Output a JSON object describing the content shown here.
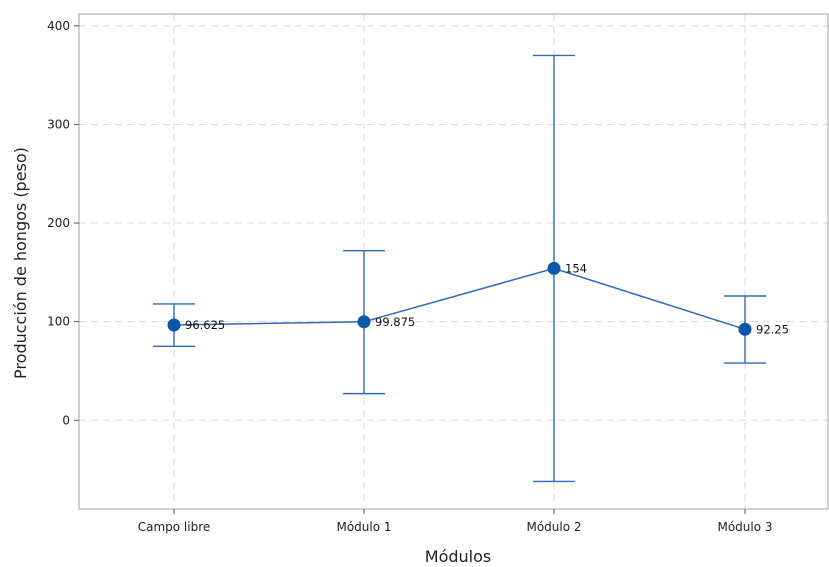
{
  "chart_data": {
    "type": "line",
    "chart_kind": "point with error bars",
    "title": "",
    "xlabel": "Módulos",
    "ylabel": "Producción de hongos (peso)",
    "categories": [
      "Campo libre",
      "Módulo 1",
      "Módulo 2",
      "Módulo 3"
    ],
    "series": [
      {
        "values": [
          96.625,
          99.875,
          154,
          92.25
        ],
        "lower": [
          75,
          27,
          -62,
          58
        ],
        "upper": [
          118,
          172,
          370,
          126
        ],
        "labels": [
          "96.625",
          "99.875",
          "154",
          "92.25"
        ]
      }
    ],
    "ylim": [
      -90,
      412
    ],
    "yticks": [
      0,
      100,
      200,
      300,
      400
    ],
    "yticks_labels": [
      "0",
      "100",
      "200",
      "300",
      "400"
    ],
    "grid": true,
    "legend": "none",
    "colors": {
      "series": "#2e6bb5",
      "marker": "#0b56a8",
      "grid": "#d9d9d9",
      "frame": "#b0b0b0"
    }
  }
}
